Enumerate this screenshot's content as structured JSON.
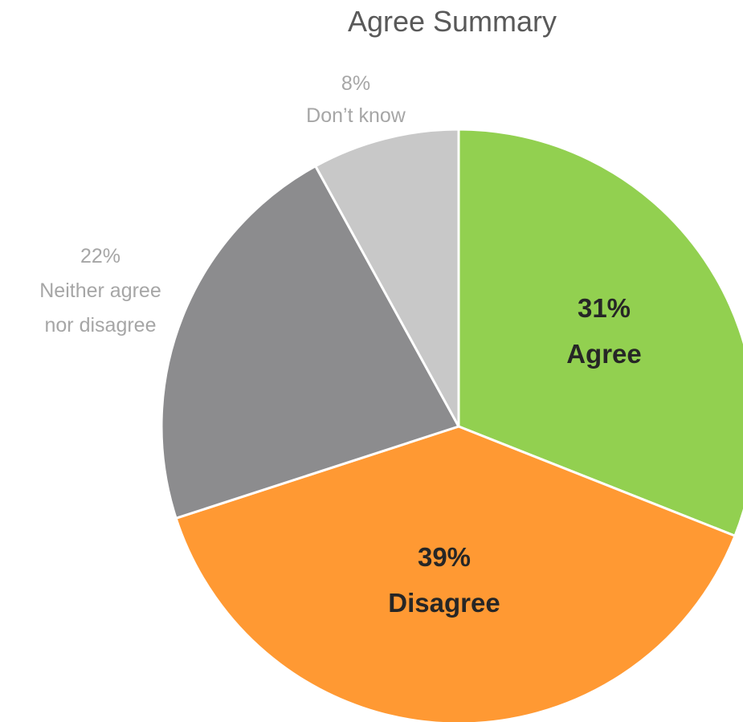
{
  "chart_data": {
    "type": "pie",
    "title": "Agree Summary",
    "slices": [
      {
        "label": "Agree",
        "value": 31,
        "value_label": "31%",
        "color": "#92D050",
        "label_color": "#262626",
        "label_bold": true,
        "label_position": "inside"
      },
      {
        "label": "Disagree",
        "value": 39,
        "value_label": "39%",
        "color": "#FF9933",
        "label_color": "#262626",
        "label_bold": true,
        "label_position": "inside"
      },
      {
        "label": "Neither agree nor disagree",
        "label_lines": [
          "Neither agree",
          "nor disagree"
        ],
        "value": 22,
        "value_label": "22%",
        "color": "#8C8C8E",
        "label_color": "#A6A6A6",
        "label_bold": false,
        "label_position": "outside"
      },
      {
        "label": "Don’t know",
        "value": 8,
        "value_label": "8%",
        "color": "#C8C8C8",
        "label_color": "#A6A6A6",
        "label_bold": false,
        "label_position": "outside"
      }
    ],
    "start_angle_deg": 0,
    "direction": "clockwise",
    "legend": "none"
  }
}
